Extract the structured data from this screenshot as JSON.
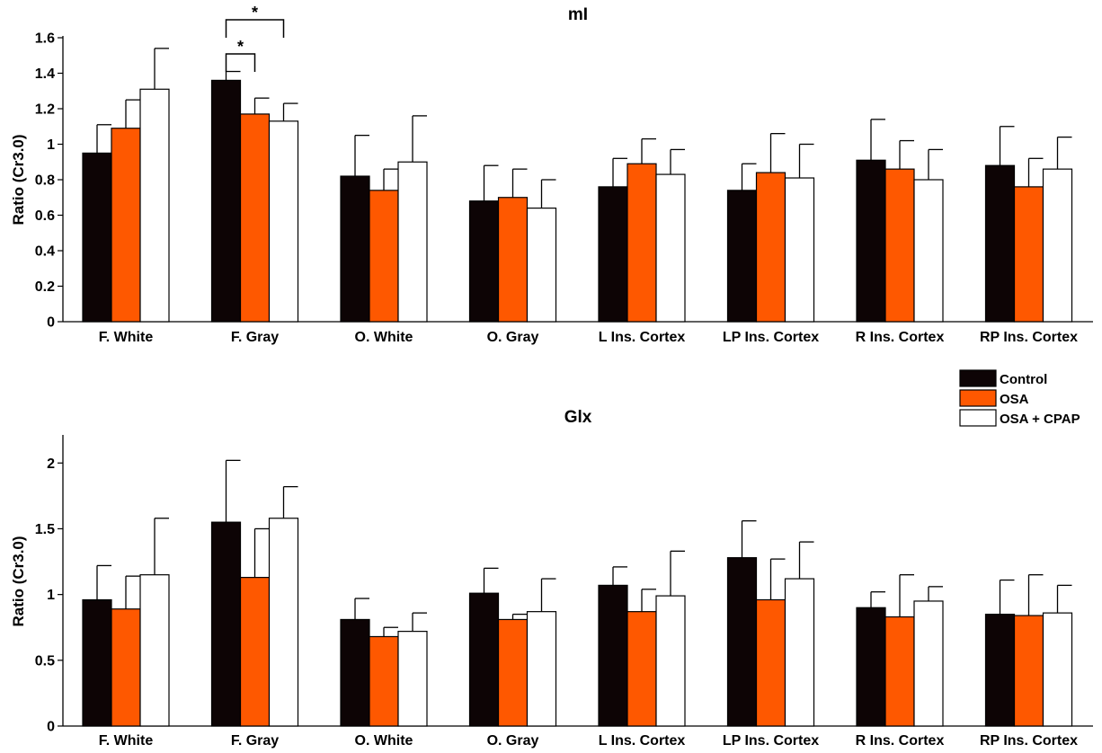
{
  "series_colors": [
    "#0d0405",
    "#fe5800",
    "#ffffff"
  ],
  "legend": {
    "entries": [
      "Control",
      "OSA",
      "OSA + CPAP"
    ]
  },
  "chart_data": [
    {
      "type": "bar",
      "title": "mI",
      "xlabel": "",
      "ylabel": "Ratio (Cr3.0)",
      "ylim": [
        0,
        1.6
      ],
      "yticks": [
        0,
        0.2,
        0.4,
        0.6,
        0.8,
        1,
        1.2,
        1.4,
        1.6
      ],
      "ytick_labels": [
        "0",
        "0.2",
        "0.4",
        "0.6",
        "0.8",
        "1",
        "1.2",
        "1.4",
        "1.6"
      ],
      "categories": [
        "F. White",
        "F. Gray",
        "O. White",
        "O. Gray",
        "L Ins. Cortex",
        "LP Ins. Cortex",
        "R Ins. Cortex",
        "RP Ins. Cortex"
      ],
      "series": [
        {
          "name": "Control",
          "values": [
            0.95,
            1.36,
            0.82,
            0.68,
            0.76,
            0.74,
            0.91,
            0.88
          ],
          "errors": [
            0.16,
            0.05,
            0.23,
            0.2,
            0.16,
            0.15,
            0.23,
            0.22
          ]
        },
        {
          "name": "OSA",
          "values": [
            1.09,
            1.17,
            0.74,
            0.7,
            0.89,
            0.84,
            0.86,
            0.76
          ],
          "errors": [
            0.16,
            0.09,
            0.12,
            0.16,
            0.14,
            0.22,
            0.16,
            0.16
          ]
        },
        {
          "name": "OSA + CPAP",
          "values": [
            1.31,
            1.13,
            0.9,
            0.64,
            0.83,
            0.81,
            0.8,
            0.86
          ],
          "errors": [
            0.23,
            0.1,
            0.26,
            0.16,
            0.14,
            0.19,
            0.17,
            0.18
          ]
        }
      ],
      "significance": [
        {
          "category": "F. Gray",
          "from_series": 0,
          "to_series": 1,
          "label": "*"
        },
        {
          "category": "F. Gray",
          "from_series": 0,
          "to_series": 2,
          "label": "*"
        }
      ]
    },
    {
      "type": "bar",
      "title": "Glx",
      "xlabel": "",
      "ylabel": "Ratio (Cr3.0)",
      "ylim": [
        0,
        2.2
      ],
      "yticks": [
        0,
        0.5,
        1,
        1.5,
        2
      ],
      "ytick_labels": [
        "0",
        "0.5",
        "1",
        "1.5",
        "2"
      ],
      "categories": [
        "F. White",
        "F. Gray",
        "O. White",
        "O. Gray",
        "L Ins. Cortex",
        "LP Ins. Cortex",
        "R Ins. Cortex",
        "RP Ins. Cortex"
      ],
      "series": [
        {
          "name": "Control",
          "values": [
            0.96,
            1.55,
            0.81,
            1.01,
            1.07,
            1.28,
            0.9,
            0.85
          ],
          "errors": [
            0.26,
            0.47,
            0.16,
            0.19,
            0.14,
            0.28,
            0.12,
            0.26
          ]
        },
        {
          "name": "OSA",
          "values": [
            0.89,
            1.13,
            0.68,
            0.81,
            0.87,
            0.96,
            0.83,
            0.84
          ],
          "errors": [
            0.25,
            0.37,
            0.07,
            0.04,
            0.17,
            0.31,
            0.32,
            0.31
          ]
        },
        {
          "name": "OSA + CPAP",
          "values": [
            1.15,
            1.58,
            0.72,
            0.87,
            0.99,
            1.12,
            0.95,
            0.86
          ],
          "errors": [
            0.43,
            0.24,
            0.14,
            0.25,
            0.34,
            0.28,
            0.11,
            0.21
          ]
        }
      ],
      "significance": []
    }
  ]
}
